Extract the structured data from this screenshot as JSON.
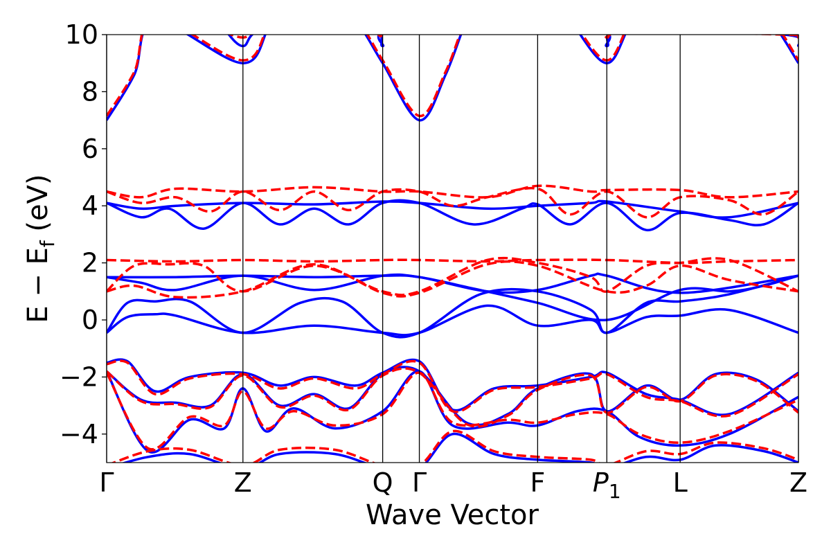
{
  "chart_data": {
    "type": "line",
    "title": "",
    "xlabel": "Wave Vector",
    "ylabel": "E − E_f (eV)",
    "ylabel_main": "E  −  E",
    "ylabel_sub": "f",
    "ylabel_unit": " (eV)",
    "xlim": [
      0,
      1
    ],
    "ylim": [
      -5,
      10
    ],
    "yticks": [
      -4,
      -2,
      0,
      2,
      4,
      6,
      8,
      10
    ],
    "ytick_labels": [
      "−4",
      "−2",
      "0",
      "2",
      "4",
      "6",
      "8",
      "10"
    ],
    "kpoints": [
      {
        "label": "Γ",
        "x": 0.0,
        "italic": false,
        "sub": ""
      },
      {
        "label": "Z",
        "x": 0.197,
        "italic": false,
        "sub": ""
      },
      {
        "label": "Q",
        "x": 0.399,
        "italic": false,
        "sub": ""
      },
      {
        "label": "Γ",
        "x": 0.452,
        "italic": false,
        "sub": ""
      },
      {
        "label": "F",
        "x": 0.623,
        "italic": false,
        "sub": ""
      },
      {
        "label": "P",
        "x": 0.723,
        "italic": true,
        "sub": "1"
      },
      {
        "label": "L",
        "x": 0.829,
        "italic": false,
        "sub": ""
      },
      {
        "label": "Z",
        "x": 1.0,
        "italic": false,
        "sub": ""
      }
    ],
    "grid": false,
    "legend": "none",
    "colors": {
      "series_a": "#0000ff",
      "series_b": "#ff0000",
      "axes": "#000000"
    },
    "series": [
      {
        "style": "solid",
        "color": "#0000ff",
        "bands": [
          {
            "x": [
              0,
              0.03,
              0.07,
              0.1,
              0.197,
              0.3,
              0.399,
              0.452,
              0.55,
              0.623,
              0.7,
              0.723,
              0.78,
              0.829,
              0.9,
              1.0
            ],
            "y": [
              -0.45,
              0.1,
              0.2,
              0.15,
              -0.45,
              -0.2,
              -0.45,
              -0.45,
              0.5,
              -0.2,
              0.0,
              -0.45,
              0.1,
              0.15,
              0.35,
              -0.45
            ]
          },
          {
            "x": [
              0,
              0.03,
              0.07,
              0.12,
              0.197,
              0.28,
              0.34,
              0.399,
              0.452,
              0.54,
              0.623,
              0.7,
              0.723,
              0.78,
              0.829,
              0.9,
              1.0
            ],
            "y": [
              -0.45,
              0.6,
              0.65,
              0.65,
              -0.45,
              0.6,
              0.65,
              -0.45,
              -0.45,
              0.9,
              1.0,
              0.35,
              -0.45,
              0.6,
              0.65,
              0.9,
              1.55
            ]
          },
          {
            "x": [
              0,
              0.05,
              0.1,
              0.197,
              0.3,
              0.399,
              0.452,
              0.53,
              0.623,
              0.723,
              0.829,
              0.9,
              0.95,
              1.0
            ],
            "y": [
              1.5,
              1.3,
              1.05,
              1.55,
              1.05,
              1.55,
              1.5,
              1.1,
              0.6,
              0.0,
              1.05,
              1.0,
              1.2,
              1.55
            ]
          },
          {
            "x": [
              0,
              0.1,
              0.197,
              0.3,
              0.399,
              0.452,
              0.55,
              0.623,
              0.7,
              0.723,
              0.829,
              1.0
            ],
            "y": [
              1.5,
              1.5,
              1.55,
              1.5,
              1.55,
              1.5,
              1.0,
              1.05,
              1.55,
              1.55,
              0.95,
              1.55
            ]
          },
          {
            "x": [
              0,
              0.05,
              0.09,
              0.14,
              0.197,
              0.25,
              0.3,
              0.35,
              0.399,
              0.452,
              0.53,
              0.6,
              0.623,
              0.67,
              0.723,
              0.78,
              0.829,
              0.9,
              0.95,
              1.0
            ],
            "y": [
              4.1,
              3.6,
              3.9,
              3.2,
              4.1,
              3.35,
              3.9,
              3.35,
              4.1,
              4.1,
              3.35,
              3.9,
              4.05,
              3.35,
              4.1,
              3.15,
              3.75,
              3.5,
              3.35,
              4.1
            ]
          },
          {
            "x": [
              0,
              0.05,
              0.1,
              0.197,
              0.3,
              0.399,
              0.452,
              0.55,
              0.623,
              0.7,
              0.723,
              0.829,
              0.9,
              1.0
            ],
            "y": [
              4.1,
              3.9,
              4.0,
              4.1,
              4.05,
              4.15,
              4.1,
              3.9,
              4.0,
              4.1,
              4.15,
              3.8,
              3.6,
              4.1
            ]
          },
          {
            "x": [
              0,
              0.04,
              0.07,
              0.197,
              0.24,
              0.3,
              0.36,
              0.399,
              0.452,
              0.49,
              0.52,
              0.55,
              0.623,
              0.67,
              0.723,
              0.76,
              0.81,
              0.829,
              0.9,
              0.96,
              1.0
            ],
            "y": [
              7.0,
              8.6,
              10.5,
              9.0,
              10.5,
              12,
              10.5,
              9.0,
              7.0,
              8.6,
              10.5,
              12,
              12,
              10.5,
              9.0,
              10.5,
              12,
              12,
              12,
              10.5,
              9.0
            ]
          },
          {
            "x": [
              0.17,
              0.197,
              0.23,
              0.38,
              0.399,
              0.42,
              0.7,
              0.723,
              0.75,
              0.98,
              1.0
            ],
            "y": [
              10.2,
              9.6,
              10.2,
              10.2,
              9.6,
              10.2,
              10.2,
              9.6,
              10.2,
              10.0,
              9.6
            ]
          },
          {
            "x": [
              0,
              0.03,
              0.07,
              0.12,
              0.197,
              0.25,
              0.3,
              0.36,
              0.399,
              0.452,
              0.5,
              0.56,
              0.623,
              0.7,
              0.723,
              0.78,
              0.829,
              0.9,
              1.0
            ],
            "y": [
              -1.5,
              -1.45,
              -2.5,
              -2.0,
              -1.85,
              -2.3,
              -2.0,
              -2.3,
              -1.85,
              -1.45,
              -3.15,
              -2.4,
              -2.3,
              -2.0,
              -1.85,
              -2.6,
              -2.8,
              -3.3,
              -1.85
            ]
          },
          {
            "x": [
              0,
              0.05,
              0.1,
              0.15,
              0.197,
              0.25,
              0.3,
              0.35,
              0.399,
              0.452,
              0.52,
              0.58,
              0.623,
              0.7,
              0.723,
              0.78,
              0.829,
              0.88,
              0.94,
              1.0
            ],
            "y": [
              -1.8,
              -2.8,
              -2.9,
              -3.0,
              -1.9,
              -3.0,
              -2.6,
              -3.1,
              -1.9,
              -1.8,
              -3.6,
              -3.3,
              -2.4,
              -1.9,
              -3.2,
              -2.3,
              -2.8,
              -1.9,
              -2.1,
              -3.2
            ]
          },
          {
            "x": [
              0,
              0.06,
              0.12,
              0.17,
              0.197,
              0.23,
              0.27,
              0.33,
              0.399,
              0.452,
              0.5,
              0.58,
              0.623,
              0.68,
              0.723,
              0.77,
              0.829,
              0.9,
              1.0
            ],
            "y": [
              -1.8,
              -4.6,
              -3.5,
              -3.8,
              -2.4,
              -3.9,
              -3.1,
              -3.8,
              -3.2,
              -1.8,
              -3.7,
              -3.6,
              -3.7,
              -3.2,
              -3.2,
              -4.1,
              -4.4,
              -4.0,
              -2.7
            ]
          },
          {
            "x": [
              0,
              0.06,
              0.12,
              0.197,
              0.25,
              0.33,
              0.399,
              0.452,
              0.5,
              0.56,
              0.623,
              0.7,
              0.723,
              0.78,
              0.829,
              0.88,
              0.95,
              1.0
            ],
            "y": [
              -5.2,
              -4.8,
              -4.7,
              -5.2,
              -4.7,
              -4.7,
              -5.2,
              -5.2,
              -4.0,
              -4.7,
              -4.9,
              -5.0,
              -5.2,
              -4.8,
              -4.9,
              -4.4,
              -4.6,
              -5.0
            ]
          }
        ]
      },
      {
        "style": "dashed",
        "color": "#ff0000",
        "bands": [
          {
            "x": [
              0,
              0.04,
              0.09,
              0.14,
              0.197,
              0.3,
              0.399,
              0.452,
              0.55,
              0.623,
              0.7,
              0.723,
              0.78,
              0.829,
              0.9,
              1.0
            ],
            "y": [
              1.0,
              1.9,
              1.95,
              1.9,
              1.0,
              1.9,
              1.0,
              1.0,
              2.1,
              2.0,
              1.5,
              1.0,
              1.9,
              2.0,
              2.1,
              1.0
            ]
          },
          {
            "x": [
              0,
              0.04,
              0.1,
              0.197,
              0.3,
              0.399,
              0.452,
              0.55,
              0.623,
              0.723,
              0.78,
              0.829,
              0.9,
              1.0
            ],
            "y": [
              1.0,
              1.2,
              0.8,
              1.0,
              1.95,
              0.95,
              0.95,
              1.95,
              1.9,
              1.0,
              1.2,
              1.9,
              1.4,
              1.0
            ]
          },
          {
            "x": [
              0,
              0.1,
              0.197,
              0.3,
              0.399,
              0.452,
              0.55,
              0.623,
              0.723,
              0.829,
              0.9,
              1.0
            ],
            "y": [
              2.1,
              2.05,
              2.1,
              2.05,
              2.1,
              2.1,
              2.05,
              2.1,
              2.1,
              2.0,
              2.05,
              2.1
            ]
          },
          {
            "x": [
              0,
              0.05,
              0.1,
              0.197,
              0.3,
              0.399,
              0.452,
              0.55,
              0.623,
              0.7,
              0.723,
              0.829,
              0.9,
              1.0
            ],
            "y": [
              4.5,
              4.3,
              4.6,
              4.5,
              4.65,
              4.5,
              4.5,
              4.3,
              4.7,
              4.5,
              4.55,
              4.55,
              4.3,
              4.5
            ]
          },
          {
            "x": [
              0,
              0.05,
              0.1,
              0.15,
              0.197,
              0.25,
              0.3,
              0.35,
              0.399,
              0.452,
              0.5,
              0.55,
              0.623,
              0.67,
              0.723,
              0.78,
              0.829,
              0.9,
              0.95,
              1.0
            ],
            "y": [
              4.5,
              4.1,
              4.3,
              3.8,
              4.5,
              3.85,
              4.5,
              3.85,
              4.5,
              4.5,
              4.0,
              4.3,
              4.6,
              3.7,
              4.5,
              3.6,
              4.3,
              4.2,
              3.7,
              4.5
            ]
          },
          {
            "x": [
              0,
              0.04,
              0.07,
              0.197,
              0.24,
              0.3,
              0.36,
              0.399,
              0.452,
              0.49,
              0.52,
              0.55,
              0.623,
              0.67,
              0.723,
              0.76,
              0.81,
              0.829,
              0.9,
              0.96,
              1.0
            ],
            "y": [
              7.15,
              8.7,
              10.6,
              9.1,
              10.6,
              12,
              10.6,
              9.1,
              7.15,
              8.7,
              10.6,
              12,
              12,
              10.6,
              9.1,
              10.6,
              12,
              12,
              12,
              10.6,
              9.1
            ]
          },
          {
            "x": [
              0.17,
              0.197,
              0.23,
              0.38,
              0.399,
              0.42,
              0.7,
              0.723,
              0.75,
              0.98,
              1.0
            ],
            "y": [
              10.1,
              9.9,
              10.1,
              10.1,
              9.9,
              10.1,
              10.1,
              9.9,
              10.1,
              10.0,
              9.9
            ]
          },
          {
            "x": [
              0,
              0.03,
              0.07,
              0.12,
              0.197,
              0.25,
              0.3,
              0.36,
              0.399,
              0.452,
              0.5,
              0.56,
              0.623,
              0.7,
              0.723,
              0.78,
              0.829,
              0.9,
              1.0
            ],
            "y": [
              -1.55,
              -1.5,
              -2.6,
              -2.05,
              -1.9,
              -2.4,
              -2.05,
              -2.4,
              -1.9,
              -1.5,
              -3.2,
              -2.45,
              -2.35,
              -2.05,
              -1.9,
              -2.7,
              -2.85,
              -3.35,
              -1.9
            ]
          },
          {
            "x": [
              0,
              0.05,
              0.1,
              0.15,
              0.197,
              0.25,
              0.3,
              0.35,
              0.399,
              0.452,
              0.52,
              0.58,
              0.623,
              0.7,
              0.723,
              0.78,
              0.829,
              0.88,
              0.94,
              1.0
            ],
            "y": [
              -1.8,
              -2.85,
              -2.95,
              -3.05,
              -1.95,
              -3.05,
              -2.65,
              -3.15,
              -1.95,
              -1.85,
              -3.65,
              -3.35,
              -2.45,
              -1.95,
              -3.25,
              -2.35,
              -2.85,
              -1.95,
              -2.15,
              -3.25
            ]
          },
          {
            "x": [
              0,
              0.06,
              0.12,
              0.17,
              0.197,
              0.23,
              0.27,
              0.33,
              0.399,
              0.452,
              0.5,
              0.58,
              0.623,
              0.68,
              0.723,
              0.77,
              0.829,
              0.9,
              1.0
            ],
            "y": [
              -1.85,
              -4.5,
              -3.4,
              -3.7,
              -2.5,
              -3.8,
              -3.2,
              -3.7,
              -3.3,
              -1.85,
              -3.6,
              -3.5,
              -3.6,
              -3.3,
              -3.3,
              -4.0,
              -4.3,
              -3.9,
              -2.8
            ]
          },
          {
            "x": [
              0,
              0.06,
              0.12,
              0.197,
              0.25,
              0.33,
              0.399,
              0.452,
              0.5,
              0.56,
              0.623,
              0.7,
              0.723,
              0.78,
              0.829,
              0.88,
              0.95,
              1.0
            ],
            "y": [
              -5.1,
              -4.6,
              -4.55,
              -5.1,
              -4.55,
              -4.55,
              -5.1,
              -5.1,
              -3.9,
              -4.6,
              -4.8,
              -4.9,
              -5.1,
              -4.6,
              -4.7,
              -4.3,
              -4.5,
              -4.9
            ]
          }
        ]
      }
    ]
  }
}
